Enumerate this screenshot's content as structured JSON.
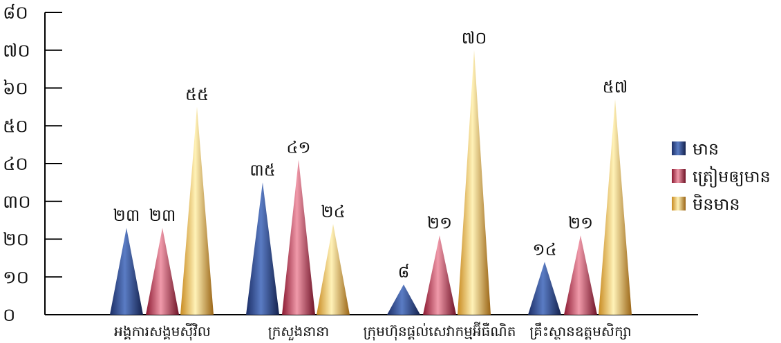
{
  "chart_data": {
    "type": "bar",
    "title": "",
    "xlabel": "",
    "ylabel": "",
    "ylim": [
      0,
      80
    ],
    "yticks": [
      0,
      10,
      20,
      30,
      40,
      50,
      60,
      70,
      80
    ],
    "ytick_labels": [
      "០",
      "១០",
      "២០",
      "៣០",
      "៤០",
      "៥០",
      "៦០",
      "៧០",
      "៨០"
    ],
    "grid": false,
    "legend_position": "right",
    "categories": [
      "អង្គការសង្គមស៊ីវិល",
      "ក្រសួងនានា",
      "ក្រុមហ៊ុនផ្តល់សេវាកម្មអ៊ីធឺណិត",
      "គ្រឹះស្ថានឧត្តមសិក្សា"
    ],
    "series": [
      {
        "name": "មាន",
        "color": "#2f4a8a",
        "values": [
          23,
          35,
          8,
          14
        ],
        "labels": [
          "២៣",
          "៣៥",
          "៨",
          "១៤"
        ]
      },
      {
        "name": "ត្រៀមឲ្យមាន",
        "color": "#c0304a",
        "values": [
          23,
          41,
          21,
          21
        ],
        "labels": [
          "២៣",
          "៤១",
          "២១",
          "២១"
        ]
      },
      {
        "name": "មិនមាន",
        "color": "#e8b030",
        "values": [
          55,
          24,
          70,
          57
        ],
        "labels": [
          "៥៥",
          "២៤",
          "៧០",
          "៥៧"
        ]
      }
    ]
  }
}
